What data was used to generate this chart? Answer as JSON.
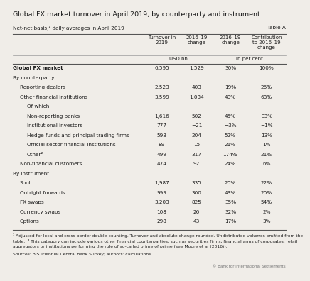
{
  "title": "Global FX market turnover in April 2019, by counterparty and instrument",
  "subtitle": "Net-net basis,¹ daily averages in April 2019",
  "table_label": "Table A",
  "col_header1": [
    "Turnover in\n2019",
    "2016–19\nchange",
    "2016–19\nchange",
    "Contribution\nto 2016–19\nchange"
  ],
  "col_header2_left": "USD bn",
  "col_header2_right": "In per cent",
  "rows": [
    {
      "label": "Global FX market",
      "indent": 0,
      "bold": true,
      "values": [
        "6,595",
        "1,529",
        "30%",
        "100%"
      ]
    },
    {
      "label": "By counterparty",
      "indent": 0,
      "bold": false,
      "values": [
        "",
        "",
        "",
        ""
      ]
    },
    {
      "label": "Reporting dealers",
      "indent": 1,
      "bold": false,
      "values": [
        "2,523",
        "403",
        "19%",
        "26%"
      ]
    },
    {
      "label": "Other financial institutions",
      "indent": 1,
      "bold": false,
      "values": [
        "3,599",
        "1,034",
        "40%",
        "68%"
      ]
    },
    {
      "label": "Of which:",
      "indent": 2,
      "bold": false,
      "values": [
        "",
        "",
        "",
        ""
      ]
    },
    {
      "label": "Non-reporting banks",
      "indent": 2,
      "bold": false,
      "values": [
        "1,616",
        "502",
        "45%",
        "33%"
      ]
    },
    {
      "label": "Institutional investors",
      "indent": 2,
      "bold": false,
      "values": [
        "777",
        "−21",
        "−3%",
        "−1%"
      ]
    },
    {
      "label": "Hedge funds and principal trading firms",
      "indent": 2,
      "bold": false,
      "values": [
        "593",
        "204",
        "52%",
        "13%"
      ]
    },
    {
      "label": "Official sector financial institutions",
      "indent": 2,
      "bold": false,
      "values": [
        "89",
        "15",
        "21%",
        "1%"
      ]
    },
    {
      "label": "Other²",
      "indent": 2,
      "bold": false,
      "values": [
        "499",
        "317",
        "174%",
        "21%"
      ]
    },
    {
      "label": "Non-financial customers",
      "indent": 1,
      "bold": false,
      "values": [
        "474",
        "92",
        "24%",
        "6%"
      ]
    },
    {
      "label": "By instrument",
      "indent": 0,
      "bold": false,
      "values": [
        "",
        "",
        "",
        ""
      ]
    },
    {
      "label": "Spot",
      "indent": 1,
      "bold": false,
      "values": [
        "1,987",
        "335",
        "20%",
        "22%"
      ]
    },
    {
      "label": "Outright forwards",
      "indent": 1,
      "bold": false,
      "values": [
        "999",
        "300",
        "43%",
        "20%"
      ]
    },
    {
      "label": "FX swaps",
      "indent": 1,
      "bold": false,
      "values": [
        "3,203",
        "825",
        "35%",
        "54%"
      ]
    },
    {
      "label": "Currency swaps",
      "indent": 1,
      "bold": false,
      "values": [
        "108",
        "26",
        "32%",
        "2%"
      ]
    },
    {
      "label": "Options",
      "indent": 1,
      "bold": false,
      "values": [
        "298",
        "43",
        "17%",
        "3%"
      ]
    }
  ],
  "footnote1": "¹ Adjusted for local and cross-border double-counting. Turnover and absolute change rounded. Undistributed volumes omitted from the",
  "footnote2": "table.  ² This category can include various other financial counterparties, such as securities firms, financial arms of corporates, retail",
  "footnote3": "aggregators or institutions performing the role of so-called prime of prime (see Moore et al (2016)).",
  "sources": "Sources: BIS Triennial Central Bank Survey; authors' calculations.",
  "copyright": "© Bank for International Settlements",
  "bg_color": "#f0ede8",
  "text_color": "#1a1a1a",
  "line_color_dark": "#555555",
  "line_color_light": "#999999"
}
